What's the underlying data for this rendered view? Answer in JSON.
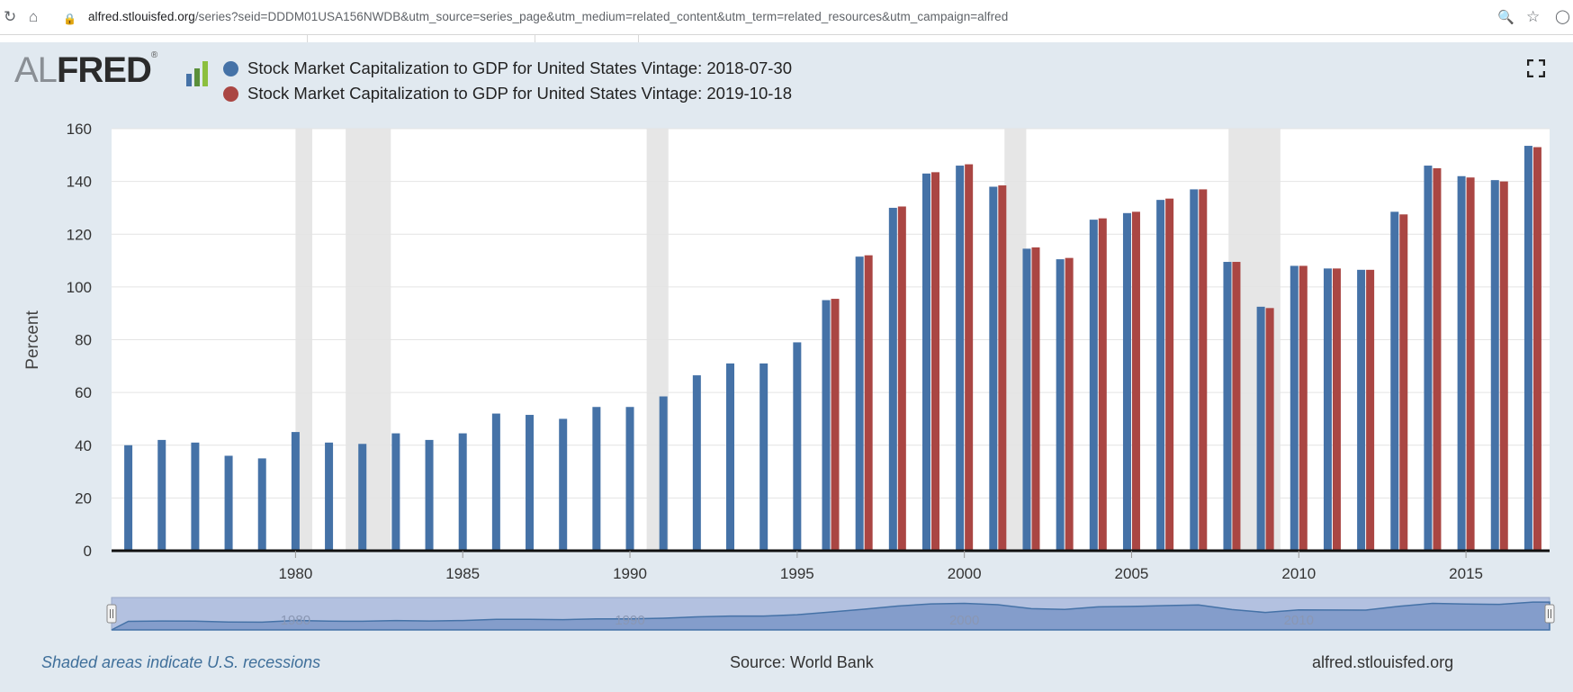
{
  "browser": {
    "url_domain": "alfred.stlouisfed.org",
    "url_path": "/series?seid=DDDM01USA156NWDB&utm_source=series_page&utm_medium=related_content&utm_term=related_resources&utm_campaign=alfred"
  },
  "logo": {
    "al": "AL",
    "fred": "FRED",
    "reg": "®"
  },
  "legend": [
    {
      "label": "Stock Market Capitalization to GDP for United States Vintage: 2018-07-30",
      "color": "#4572a7"
    },
    {
      "label": "Stock Market Capitalization to GDP for United States Vintage: 2019-10-18",
      "color": "#aa4643"
    }
  ],
  "footer": {
    "recession_note": "Shaded areas indicate U.S. recessions",
    "source": "Source: World Bank",
    "site": "alfred.stlouisfed.org"
  },
  "colors": {
    "series1": "#4572a7",
    "series2": "#aa4643",
    "recession": "#e6e6e6",
    "navigator_fill": "#7b96c7",
    "navigator_bg": "#b3c1e0"
  },
  "chart_data": {
    "type": "bar",
    "title": "",
    "xlabel": "",
    "ylabel": "Percent",
    "ylim": [
      0,
      160
    ],
    "yticks": [
      0,
      20,
      40,
      60,
      80,
      100,
      120,
      140,
      160
    ],
    "xticks": [
      1980,
      1985,
      1990,
      1995,
      2000,
      2005,
      2010,
      2015
    ],
    "x_range": [
      1975,
      2017
    ],
    "grid": true,
    "legend_position": "top-left",
    "recessions": [
      [
        1980.0,
        1980.5
      ],
      [
        1981.5,
        1982.85
      ],
      [
        1990.5,
        1991.15
      ],
      [
        2001.2,
        2001.85
      ],
      [
        2007.9,
        2009.45
      ]
    ],
    "categories": [
      1975,
      1976,
      1977,
      1978,
      1979,
      1980,
      1981,
      1982,
      1983,
      1984,
      1985,
      1986,
      1987,
      1988,
      1989,
      1990,
      1991,
      1992,
      1993,
      1994,
      1995,
      1996,
      1997,
      1998,
      1999,
      2000,
      2001,
      2002,
      2003,
      2004,
      2005,
      2006,
      2007,
      2008,
      2009,
      2010,
      2011,
      2012,
      2013,
      2014,
      2015,
      2016,
      2017
    ],
    "series": [
      {
        "name": "Stock Market Capitalization to GDP for United States Vintage: 2018-07-30",
        "values": [
          40,
          42,
          41,
          36,
          35,
          45,
          41,
          40.5,
          44.5,
          42,
          44.5,
          52,
          51.5,
          50,
          54.5,
          54.5,
          58.5,
          66.5,
          71,
          71,
          79,
          95,
          111.5,
          130,
          143,
          146,
          138,
          114.5,
          110.5,
          125.5,
          128,
          133,
          137,
          109.5,
          92.5,
          108,
          107,
          106.5,
          128.5,
          146,
          142,
          140.5,
          153.5
        ]
      },
      {
        "name": "Stock Market Capitalization to GDP for United States Vintage: 2019-10-18",
        "values": [
          null,
          null,
          null,
          null,
          null,
          null,
          null,
          null,
          null,
          null,
          null,
          null,
          null,
          null,
          null,
          null,
          null,
          null,
          null,
          null,
          null,
          95.5,
          112,
          130.5,
          143.5,
          146.5,
          138.5,
          115,
          111,
          126,
          128.5,
          133.5,
          137,
          109.5,
          92,
          108,
          107,
          106.5,
          127.5,
          145,
          141.5,
          140,
          153
        ]
      }
    ],
    "navigator_labels": [
      1980,
      1990,
      2000,
      2010
    ]
  }
}
